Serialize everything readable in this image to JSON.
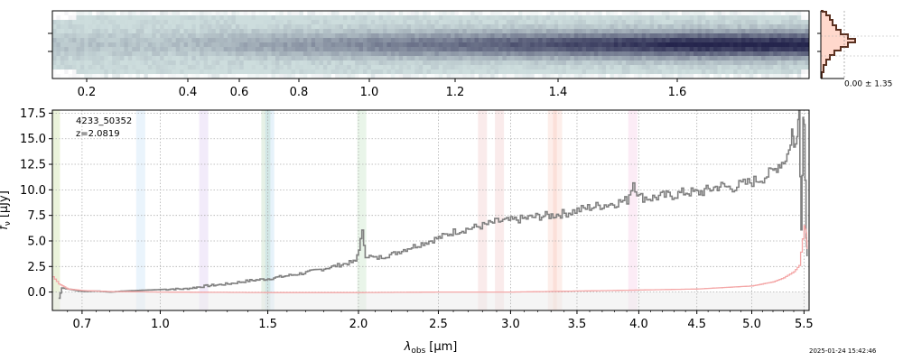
{
  "chart_data": [
    {
      "type": "heatmap",
      "panel": "2d-spectrum",
      "top_axis_ticks": [
        {
          "label": "0.2",
          "wave": 0.2
        },
        {
          "label": "0.4",
          "wave": 0.4
        },
        {
          "label": "0.6",
          "wave": 0.6
        },
        {
          "label": "0.8",
          "wave": 0.8
        },
        {
          "label": "1.0",
          "wave": 1.0
        },
        {
          "label": "1.2",
          "wave": 1.2
        },
        {
          "label": "1.4",
          "wave": 1.4
        },
        {
          "label": "1.6",
          "wave": 1.6
        }
      ],
      "trace_color": "#25254d"
    },
    {
      "type": "histogram",
      "panel": "pixel-histogram",
      "annotation": "0.00 ± 1.35",
      "colors": {
        "fill": "#ffd8cc",
        "line": "#5a3020"
      }
    },
    {
      "type": "line",
      "panel": "1d-spectrum",
      "object_id": "4233_50352",
      "redshift_label": "z=2.0819",
      "xlabel_symbol": "λ",
      "xlabel_sub": "obs",
      "xlabel_unit": "[μm]",
      "ylabel_symbol": "f",
      "ylabel_sub": "ν",
      "ylabel_unit": "[μJy]",
      "xlim": [
        0.6,
        5.55
      ],
      "ylim": [
        -1.8,
        17.8
      ],
      "x_ticks": [
        0.7,
        1.0,
        1.5,
        2.0,
        2.5,
        3.0,
        3.5,
        4.0,
        4.5,
        5.0,
        5.5
      ],
      "x_tick_labels": [
        "0.7",
        "1.0",
        "1.5",
        "2.0",
        "2.5",
        "3.0",
        "3.5",
        "4.0",
        "4.5",
        "5.0",
        "5.5"
      ],
      "y_ticks": [
        0.0,
        2.5,
        5.0,
        7.5,
        10.0,
        12.5,
        15.0,
        17.5
      ],
      "y_tick_labels": [
        "0.0",
        "2.5",
        "5.0",
        "7.5",
        "10.0",
        "12.5",
        "15.0",
        "17.5"
      ],
      "grid": true,
      "series": [
        {
          "name": "flux",
          "color": "#808080",
          "points": [
            [
              0.62,
              -0.6
            ],
            [
              0.63,
              0.4
            ],
            [
              0.7,
              0.05
            ],
            [
              0.75,
              0.1
            ],
            [
              0.8,
              0.0
            ],
            [
              0.85,
              0.1
            ],
            [
              0.9,
              0.15
            ],
            [
              0.95,
              0.2
            ],
            [
              1.0,
              0.25
            ],
            [
              1.05,
              0.3
            ],
            [
              1.1,
              0.3
            ],
            [
              1.15,
              0.45
            ],
            [
              1.2,
              0.6
            ],
            [
              1.3,
              0.8
            ],
            [
              1.4,
              1.1
            ],
            [
              1.5,
              1.3
            ],
            [
              1.6,
              1.6
            ],
            [
              1.7,
              1.9
            ],
            [
              1.8,
              2.3
            ],
            [
              1.9,
              2.7
            ],
            [
              1.98,
              3.0
            ],
            [
              2.0,
              4.3
            ],
            [
              2.02,
              5.8
            ],
            [
              2.04,
              3.6
            ],
            [
              2.1,
              3.3
            ],
            [
              2.2,
              3.7
            ],
            [
              2.3,
              4.3
            ],
            [
              2.4,
              4.8
            ],
            [
              2.5,
              5.3
            ],
            [
              2.6,
              5.9
            ],
            [
              2.7,
              6.2
            ],
            [
              2.8,
              6.5
            ],
            [
              2.9,
              6.9
            ],
            [
              3.0,
              7.0
            ],
            [
              3.1,
              7.2
            ],
            [
              3.2,
              7.4
            ],
            [
              3.3,
              7.5
            ],
            [
              3.4,
              7.7
            ],
            [
              3.5,
              8.0
            ],
            [
              3.6,
              8.3
            ],
            [
              3.7,
              8.5
            ],
            [
              3.8,
              8.7
            ],
            [
              3.9,
              9.0
            ],
            [
              3.95,
              10.8
            ],
            [
              4.0,
              9.3
            ],
            [
              4.1,
              9.2
            ],
            [
              4.2,
              9.4
            ],
            [
              4.3,
              9.5
            ],
            [
              4.4,
              9.8
            ],
            [
              4.5,
              9.7
            ],
            [
              4.6,
              10.0
            ],
            [
              4.7,
              10.4
            ],
            [
              4.8,
              10.2
            ],
            [
              4.9,
              10.5
            ],
            [
              5.0,
              10.8
            ],
            [
              5.1,
              11.2
            ],
            [
              5.2,
              11.8
            ],
            [
              5.25,
              12.5
            ],
            [
              5.3,
              12.8
            ],
            [
              5.35,
              13.8
            ],
            [
              5.38,
              15.8
            ],
            [
              5.4,
              14.2
            ],
            [
              5.43,
              16.0
            ],
            [
              5.45,
              17.8
            ],
            [
              5.47,
              6.0
            ],
            [
              5.49,
              17.8
            ],
            [
              5.5,
              16.5
            ],
            [
              5.52,
              5.0
            ],
            [
              5.53,
              3.5
            ]
          ]
        },
        {
          "name": "uncertainty",
          "color": "#f4a7a7",
          "points": [
            [
              0.6,
              1.5
            ],
            [
              0.62,
              0.8
            ],
            [
              0.65,
              0.3
            ],
            [
              0.7,
              0.15
            ],
            [
              0.8,
              0.05
            ],
            [
              1.0,
              0.0
            ],
            [
              1.5,
              -0.05
            ],
            [
              2.0,
              -0.05
            ],
            [
              2.5,
              0.0
            ],
            [
              3.0,
              0.0
            ],
            [
              3.5,
              0.1
            ],
            [
              4.0,
              0.2
            ],
            [
              4.5,
              0.3
            ],
            [
              5.0,
              0.6
            ],
            [
              5.2,
              1.0
            ],
            [
              5.3,
              1.4
            ],
            [
              5.4,
              2.0
            ],
            [
              5.45,
              2.6
            ],
            [
              5.5,
              6.5
            ],
            [
              5.52,
              5.8
            ],
            [
              5.53,
              4.2
            ]
          ]
        }
      ],
      "line_bands": [
        {
          "x": 0.61,
          "color": "#a6c85a"
        },
        {
          "x": 0.92,
          "color": "#9ecbf0"
        },
        {
          "x": 1.19,
          "color": "#c3a6e8"
        },
        {
          "x": 1.49,
          "color": "#8fc08f"
        },
        {
          "x": 1.51,
          "color": "#8cc2ea"
        },
        {
          "x": 2.02,
          "color": "#9ad29a"
        },
        {
          "x": 2.8,
          "color": "#e6a6a6"
        },
        {
          "x": 2.92,
          "color": "#e6a6a6"
        },
        {
          "x": 3.31,
          "color": "#f6b39e"
        },
        {
          "x": 3.35,
          "color": "#f6b39e"
        },
        {
          "x": 3.95,
          "color": "#f0a8d8"
        }
      ]
    }
  ],
  "footer": {
    "timestamp": "2025-01-24 15:42:46"
  }
}
